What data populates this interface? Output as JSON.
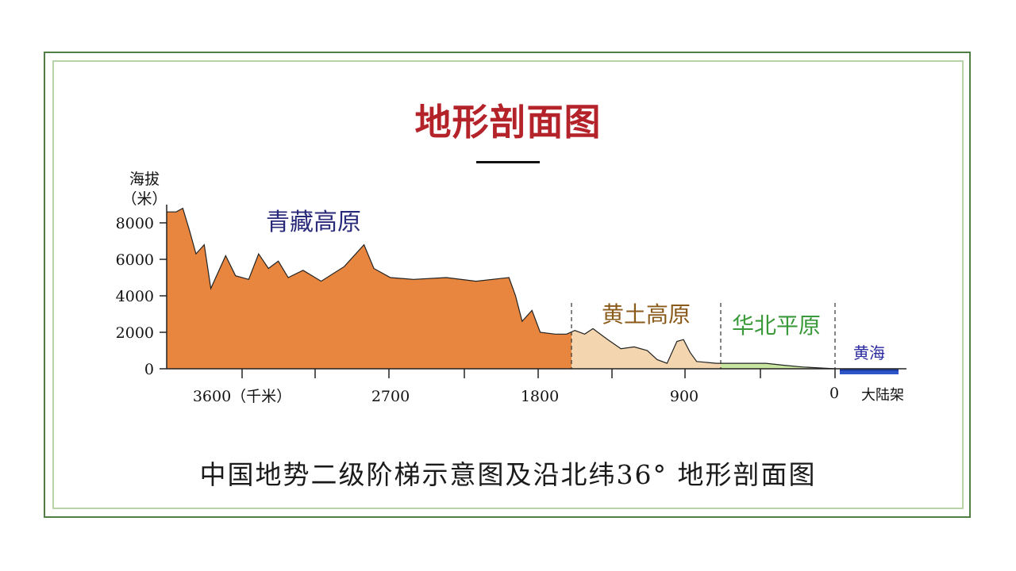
{
  "slide": {
    "title": "地形剖面图",
    "caption": "中国地势二级阶梯示意图及沿北纬36° 地形剖面图"
  },
  "chart_data": {
    "type": "area",
    "title": "",
    "ylabel": "海拔（米）",
    "ylabel_line1": "海拔",
    "ylabel_line2": "（米）",
    "xlabel": "千米",
    "ylim": [
      0,
      9000
    ],
    "yticks": [
      "8000",
      "6000",
      "4000",
      "2000",
      "0"
    ],
    "xticks": [
      "3600（千米）",
      "2700",
      "1800",
      "900",
      "0",
      "大陆架"
    ],
    "regions": [
      {
        "name": "青藏高原",
        "color": "#e8863f",
        "label_color": "#2a2a7a"
      },
      {
        "name": "黄土高原",
        "color": "#f3d6b0",
        "label_color": "#8a5a1a"
      },
      {
        "name": "华北平原",
        "color": "#c8e6a0",
        "label_color": "#3a9a3a"
      },
      {
        "name": "黄海",
        "color": "#2f56c8",
        "label_color": "#2a2aa0"
      }
    ],
    "profile_km_vs_m": [
      [
        4000,
        8600
      ],
      [
        3960,
        8800
      ],
      [
        3920,
        7600
      ],
      [
        3880,
        6300
      ],
      [
        3830,
        6800
      ],
      [
        3790,
        4400
      ],
      [
        3700,
        6200
      ],
      [
        3640,
        5100
      ],
      [
        3560,
        4900
      ],
      [
        3500,
        6300
      ],
      [
        3440,
        5500
      ],
      [
        3380,
        5900
      ],
      [
        3320,
        5000
      ],
      [
        3230,
        5400
      ],
      [
        3120,
        4800
      ],
      [
        2980,
        5600
      ],
      [
        2860,
        6800
      ],
      [
        2800,
        5500
      ],
      [
        2700,
        5000
      ],
      [
        2560,
        4900
      ],
      [
        2360,
        5000
      ],
      [
        2180,
        4800
      ],
      [
        1980,
        5000
      ],
      [
        1940,
        4000
      ],
      [
        1900,
        2600
      ],
      [
        1840,
        3200
      ],
      [
        1790,
        2000
      ],
      [
        1700,
        1900
      ],
      [
        1630,
        1900
      ],
      [
        1580,
        2100
      ],
      [
        1520,
        1900
      ],
      [
        1470,
        2200
      ],
      [
        1380,
        1600
      ],
      [
        1300,
        1100
      ],
      [
        1220,
        1200
      ],
      [
        1140,
        1000
      ],
      [
        1080,
        500
      ],
      [
        1020,
        300
      ],
      [
        960,
        1500
      ],
      [
        920,
        1600
      ],
      [
        880,
        900
      ],
      [
        840,
        400
      ],
      [
        720,
        300
      ],
      [
        600,
        300
      ],
      [
        420,
        300
      ],
      [
        320,
        200
      ],
      [
        200,
        100
      ],
      [
        0,
        0
      ]
    ],
    "grid": false
  }
}
